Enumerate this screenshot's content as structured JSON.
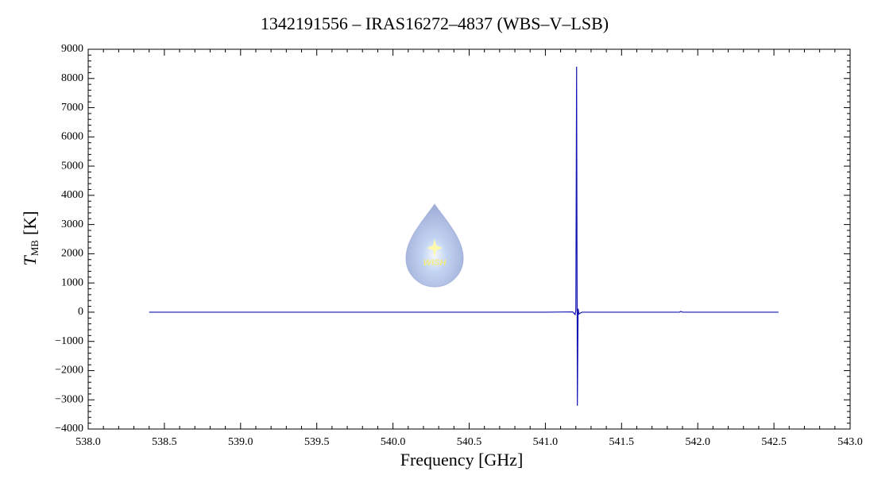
{
  "chart_data": {
    "type": "line",
    "title": "1342191556 – IRAS16272–4837 (WBS–V–LSB)",
    "x_label": "Frequency [GHz]",
    "y_label": "T",
    "y_label_sub": "MB",
    "y_label_unit": "[K]",
    "watermark": "WISH",
    "color": "#1414b4",
    "x": [
      538.4,
      539.5,
      540.5,
      541.0,
      541.18,
      541.195,
      541.2,
      541.205,
      541.21,
      541.215,
      541.22,
      541.24,
      541.5,
      541.88,
      541.89,
      541.9,
      542.2,
      542.53
    ],
    "values": [
      0,
      0,
      0,
      0,
      10,
      -80,
      60,
      8400,
      -3200,
      120,
      -60,
      0,
      0,
      0,
      25,
      0,
      0,
      0
    ],
    "xlim": [
      538.0,
      543.0
    ],
    "xticks": [
      {
        "value": 538,
        "label": "538.0"
      },
      538.5,
      {
        "value": 539,
        "label": "539.0"
      },
      539.5,
      {
        "value": 540,
        "label": "540.0"
      },
      540.5,
      {
        "value": 541,
        "label": "541.0"
      },
      541.5,
      {
        "value": 542,
        "label": "542.0"
      },
      542.5,
      {
        "value": 543,
        "label": "543.0"
      }
    ],
    "ylim": [
      -4000,
      9000
    ],
    "yticks": [
      {
        "value": -4000,
        "label": "−4000"
      },
      {
        "value": -3000,
        "label": "−3000"
      },
      {
        "value": -2000,
        "label": "−2000"
      },
      {
        "value": -1000,
        "label": "−1000"
      },
      0,
      1000,
      2000,
      3000,
      4000,
      5000,
      6000,
      7000,
      8000,
      9000
    ]
  }
}
